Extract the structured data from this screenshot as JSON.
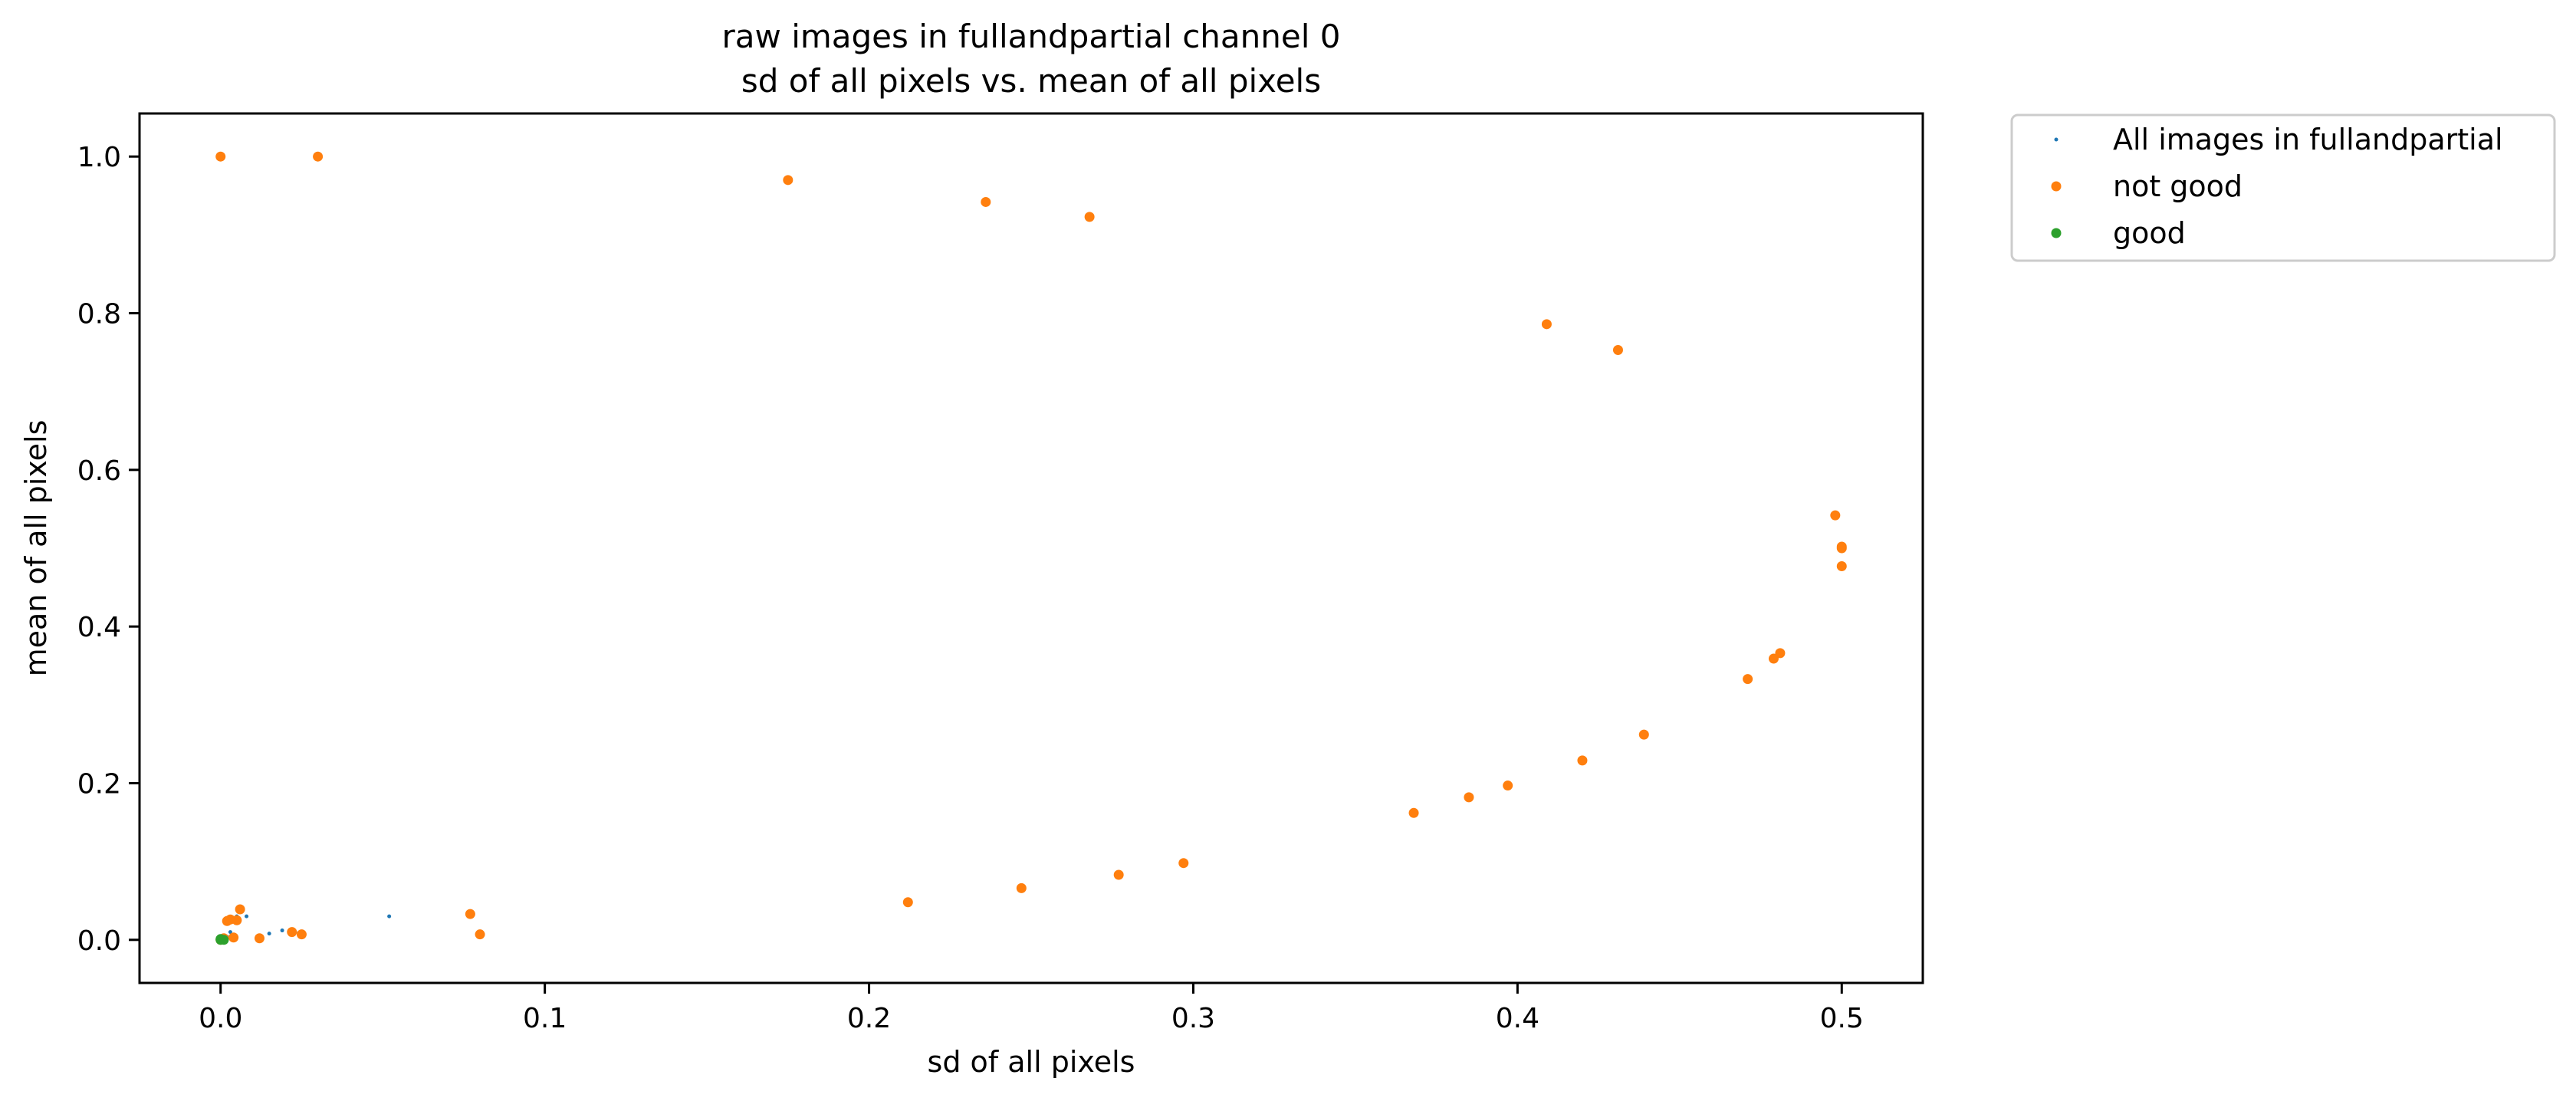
{
  "chart_data": {
    "type": "scatter",
    "title_lines": [
      "raw images in fullandpartial channel 0",
      "sd of all pixels vs. mean of all pixels"
    ],
    "xlabel": "sd of all pixels",
    "ylabel": "mean of all pixels",
    "xlim": [
      -0.025,
      0.525
    ],
    "ylim": [
      -0.055,
      1.055
    ],
    "x_ticks": [
      0.0,
      0.1,
      0.2,
      0.3,
      0.4,
      0.5
    ],
    "x_tick_labels": [
      "0.0",
      "0.1",
      "0.2",
      "0.3",
      "0.4",
      "0.5"
    ],
    "y_ticks": [
      0.0,
      0.2,
      0.4,
      0.6,
      0.8,
      1.0
    ],
    "y_tick_labels": [
      "0.0",
      "0.2",
      "0.4",
      "0.6",
      "0.8",
      "1.0"
    ],
    "grid": false,
    "legend_position": "outside-top-right",
    "series": [
      {
        "name": "All images in fullandpartial",
        "color": "#1f77b4",
        "marker": "small-dot",
        "points": [
          [
            0.0,
            0.0
          ],
          [
            0.001,
            0.002
          ],
          [
            0.002,
            0.004
          ],
          [
            0.003,
            0.01
          ],
          [
            0.005,
            0.03
          ],
          [
            0.008,
            0.03
          ],
          [
            0.012,
            0.004
          ],
          [
            0.015,
            0.008
          ],
          [
            0.019,
            0.012
          ],
          [
            0.023,
            0.01
          ],
          [
            0.052,
            0.03
          ]
        ]
      },
      {
        "name": "not good",
        "color": "#ff7f0e",
        "marker": "dot",
        "points": [
          [
            0.0,
            1.0
          ],
          [
            0.03,
            1.0
          ],
          [
            0.175,
            0.97
          ],
          [
            0.236,
            0.942
          ],
          [
            0.268,
            0.923
          ],
          [
            0.409,
            0.786
          ],
          [
            0.431,
            0.753
          ],
          [
            0.498,
            0.542
          ],
          [
            0.5,
            0.502
          ],
          [
            0.5,
            0.5
          ],
          [
            0.5,
            0.477
          ],
          [
            0.481,
            0.366
          ],
          [
            0.479,
            0.359
          ],
          [
            0.471,
            0.333
          ],
          [
            0.439,
            0.262
          ],
          [
            0.42,
            0.229
          ],
          [
            0.397,
            0.197
          ],
          [
            0.385,
            0.182
          ],
          [
            0.368,
            0.162
          ],
          [
            0.297,
            0.098
          ],
          [
            0.277,
            0.083
          ],
          [
            0.247,
            0.066
          ],
          [
            0.212,
            0.048
          ],
          [
            0.077,
            0.033
          ],
          [
            0.08,
            0.007
          ],
          [
            0.006,
            0.039
          ],
          [
            0.003,
            0.026
          ],
          [
            0.002,
            0.024
          ],
          [
            0.005,
            0.025
          ],
          [
            0.004,
            0.003
          ],
          [
            0.012,
            0.002
          ],
          [
            0.022,
            0.01
          ],
          [
            0.025,
            0.007
          ],
          [
            0.001,
            0.002
          ],
          [
            0.0,
            0.0
          ]
        ]
      },
      {
        "name": "good",
        "color": "#2ca02c",
        "marker": "dot",
        "points": [
          [
            0.0,
            0.0
          ],
          [
            0.0,
            0.001
          ],
          [
            0.001,
            0.0
          ]
        ]
      }
    ]
  }
}
